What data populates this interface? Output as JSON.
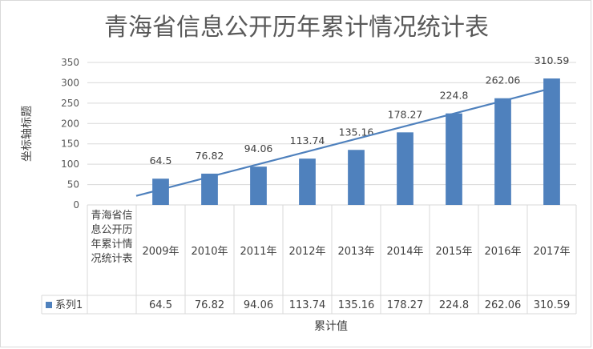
{
  "chart_data": {
    "type": "bar",
    "title": "青海省信息公开历年累计情况统计表",
    "ylabel": "坐标轴标题",
    "xlabel": "累计值",
    "ylim": [
      0,
      350
    ],
    "yticks": [
      0,
      50,
      100,
      150,
      200,
      250,
      300,
      350
    ],
    "table_header_label": "青海省信息公开历年累计情况统计表",
    "categories": [
      "2009年",
      "2010年",
      "2011年",
      "2012年",
      "2013年",
      "2014年",
      "2015年",
      "2016年",
      "2017年"
    ],
    "series": [
      {
        "name": "系列1",
        "color": "#4f81bd",
        "values": [
          64.5,
          76.82,
          94.06,
          113.74,
          135.16,
          178.27,
          224.8,
          262.06,
          310.59
        ],
        "data_labels": [
          "64.5",
          "76.82",
          "94.06",
          "113.74",
          "135.16",
          "178.27",
          "224.8",
          "262.06",
          "310.59"
        ]
      }
    ],
    "trendline": {
      "type": "linear",
      "color": "#4f81bd"
    },
    "grid": true,
    "legend": "in data table"
  }
}
